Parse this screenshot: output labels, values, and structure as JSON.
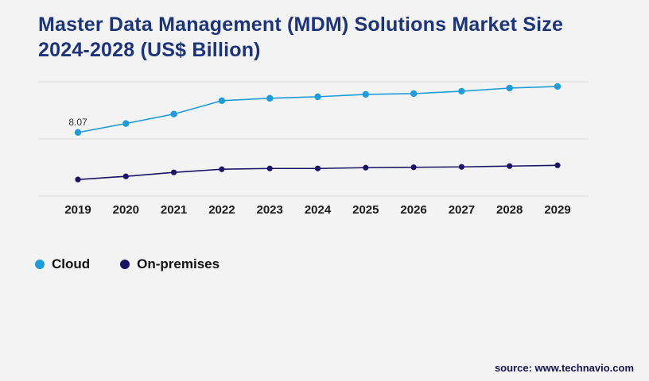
{
  "title_lines": [
    "Master Data Management (MDM) Solutions Market Size",
    "2024-2028 (US$ Billion)"
  ],
  "source": "source: www.technavio.com",
  "legend": [
    {
      "label": "Cloud",
      "color": "#1f9cd8"
    },
    {
      "label": "On-premises",
      "color": "#1b1464"
    }
  ],
  "colors": {
    "background": "#f3f3f4",
    "gridline": "#d9d9dc",
    "title": "#1c3478",
    "axis_text": "#1a1a1a"
  },
  "chart_data": {
    "type": "line",
    "x": [
      2019,
      2020,
      2021,
      2022,
      2023,
      2024,
      2025,
      2026,
      2027,
      2028,
      2029
    ],
    "series": [
      {
        "name": "Cloud",
        "color": "#1f9cd8",
        "values": [
          8.07,
          9.2,
          10.4,
          12.1,
          12.4,
          12.6,
          12.9,
          13.0,
          13.3,
          13.7,
          13.9
        ]
      },
      {
        "name": "On-premises",
        "color": "#1b1464",
        "values": [
          2.1,
          2.5,
          3.0,
          3.4,
          3.5,
          3.5,
          3.6,
          3.65,
          3.7,
          3.8,
          3.9
        ]
      }
    ],
    "annotations": [
      {
        "series": 0,
        "index": 0,
        "text": "8.07"
      }
    ],
    "ylim": [
      0,
      14.5
    ],
    "grid": "horizontal",
    "legend_position": "bottom-left",
    "title": "Master Data Management (MDM) Solutions Market Size 2024-2028 (US$ Billion)"
  }
}
